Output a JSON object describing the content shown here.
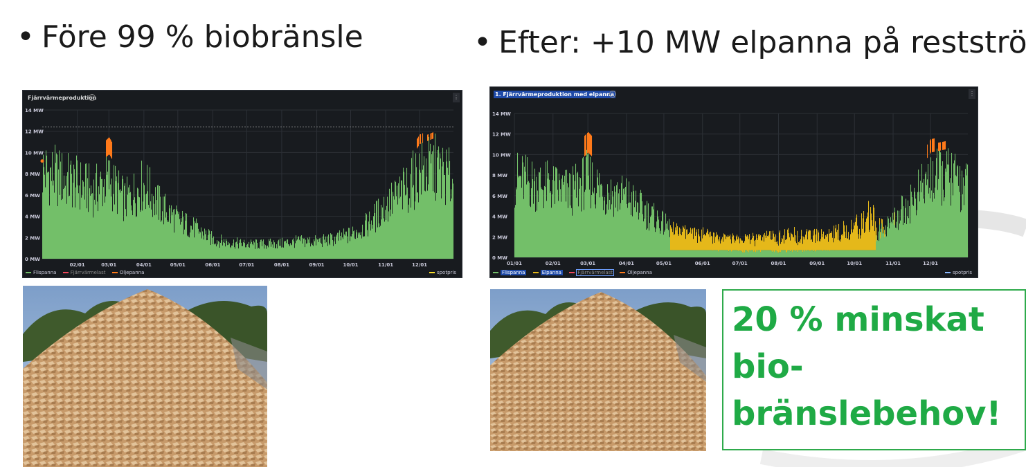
{
  "slide": {
    "bullet_left": "Före 99 % biobränsle",
    "bullet_right": "Efter: +10 MW elpanna på restström",
    "callout_lines": [
      "20 % minskat",
      "bio-",
      "bränslebehov!"
    ]
  },
  "colors": {
    "flis": "#73bf69",
    "elpanna": "#e5b81a",
    "fjarrvarmelast": "#f2495c",
    "olja": "#ff7a1a",
    "spot_left": "#fade2a",
    "spot_right": "#8ab8ff",
    "callout_green": "#1faa45"
  },
  "chart_data": [
    {
      "type": "area",
      "title": "Fjärrvärmeproduktion",
      "y_unit": "MW",
      "ylim": [
        0,
        14
      ],
      "yticks": [
        "0 MW",
        "2 MW",
        "4 MW",
        "6 MW",
        "8 MW",
        "10 MW",
        "12 MW",
        "14 MW"
      ],
      "x_range": [
        "01/01",
        "12/31"
      ],
      "xticks": [
        "02/01",
        "03/01",
        "04/01",
        "05/01",
        "06/01",
        "07/01",
        "08/01",
        "09/01",
        "10/01",
        "11/01",
        "12/01"
      ],
      "threshold": 12.4,
      "grid": true,
      "legend_position": "bottom",
      "legend": [
        {
          "name": "Flispanna",
          "color": "#73bf69"
        },
        {
          "name": "Fjärrvärmelast",
          "color": "#f2495c"
        },
        {
          "name": "Oljepanna",
          "color": "#ff7a1a"
        }
      ],
      "legend_right": {
        "name": "spotpris",
        "color": "#fade2a"
      },
      "series": [
        {
          "name": "Flispanna",
          "x": [
            "01/01",
            "01/15",
            "02/01",
            "02/15",
            "03/01",
            "03/15",
            "04/01",
            "04/15",
            "05/01",
            "05/15",
            "06/01",
            "06/15",
            "07/01",
            "07/15",
            "08/01",
            "08/15",
            "09/01",
            "09/15",
            "10/01",
            "10/15",
            "11/01",
            "11/15",
            "12/01",
            "12/15",
            "12/31"
          ],
          "values": [
            9.2,
            8.5,
            7.8,
            7.0,
            8.2,
            6.0,
            7.8,
            5.5,
            4.0,
            3.2,
            2.0,
            1.7,
            1.5,
            1.5,
            1.6,
            1.8,
            1.8,
            2.0,
            2.5,
            3.5,
            5.5,
            6.8,
            9.0,
            9.5,
            8.0
          ]
        },
        {
          "name": "Oljepanna",
          "x": [
            "03/01",
            "12/01",
            "12/10"
          ],
          "values": [
            1.6,
            0.9,
            0.6
          ]
        }
      ]
    },
    {
      "type": "area",
      "title": "1. Fjärrvärmeproduktion med elpanna",
      "y_unit": "MW",
      "ylim": [
        0,
        14
      ],
      "yticks": [
        "0 MW",
        "2 MW",
        "4 MW",
        "6 MW",
        "8 MW",
        "10 MW",
        "12 MW",
        "14 MW"
      ],
      "x_range": [
        "01/01",
        "12/31"
      ],
      "xticks": [
        "01/01",
        "02/01",
        "03/01",
        "04/01",
        "05/01",
        "06/01",
        "07/01",
        "08/01",
        "09/01",
        "10/01",
        "11/01",
        "12/01"
      ],
      "grid": true,
      "legend_position": "bottom",
      "legend": [
        {
          "name": "Flispanna",
          "color": "#73bf69"
        },
        {
          "name": "Elpanna",
          "color": "#e5b81a"
        },
        {
          "name": "Fjärrvärmelast",
          "color": "#f2495c"
        },
        {
          "name": "Oljepanna",
          "color": "#ff7a1a"
        }
      ],
      "legend_right": {
        "name": "spotpris",
        "color": "#8ab8ff"
      },
      "series": [
        {
          "name": "Flispanna",
          "x": [
            "01/01",
            "01/15",
            "02/01",
            "02/15",
            "03/01",
            "03/15",
            "04/01",
            "04/15",
            "05/01",
            "05/15",
            "06/01",
            "06/15",
            "07/01",
            "07/15",
            "08/01",
            "08/15",
            "09/01",
            "09/15",
            "10/01",
            "10/15",
            "11/01",
            "11/15",
            "12/01",
            "12/15",
            "12/31"
          ],
          "values": [
            8.5,
            8.0,
            7.5,
            7.0,
            8.5,
            7.0,
            6.5,
            5.0,
            3.5,
            2.5,
            1.2,
            1.0,
            0.8,
            0.9,
            0.8,
            0.9,
            1.0,
            1.1,
            1.5,
            2.0,
            4.0,
            6.0,
            8.5,
            8.8,
            7.5
          ]
        },
        {
          "name": "Elpanna",
          "x": [
            "01/01",
            "01/15",
            "02/01",
            "02/15",
            "03/01",
            "03/15",
            "04/01",
            "04/15",
            "05/01",
            "05/15",
            "06/01",
            "06/15",
            "07/01",
            "07/15",
            "08/01",
            "08/15",
            "09/01",
            "09/15",
            "10/01",
            "10/15",
            "11/01",
            "11/15",
            "12/01",
            "12/15",
            "12/31"
          ],
          "values": [
            0.8,
            0.9,
            1.0,
            1.0,
            0.9,
            0.8,
            1.0,
            1.2,
            1.0,
            1.0,
            1.0,
            0.8,
            0.8,
            0.8,
            1.0,
            1.1,
            1.0,
            1.2,
            1.6,
            2.5,
            2.5,
            1.0,
            1.0,
            1.0,
            1.0
          ]
        },
        {
          "name": "Oljepanna",
          "x": [
            "03/01",
            "12/01",
            "12/10"
          ],
          "values": [
            2.0,
            1.3,
            0.8
          ]
        }
      ]
    }
  ]
}
